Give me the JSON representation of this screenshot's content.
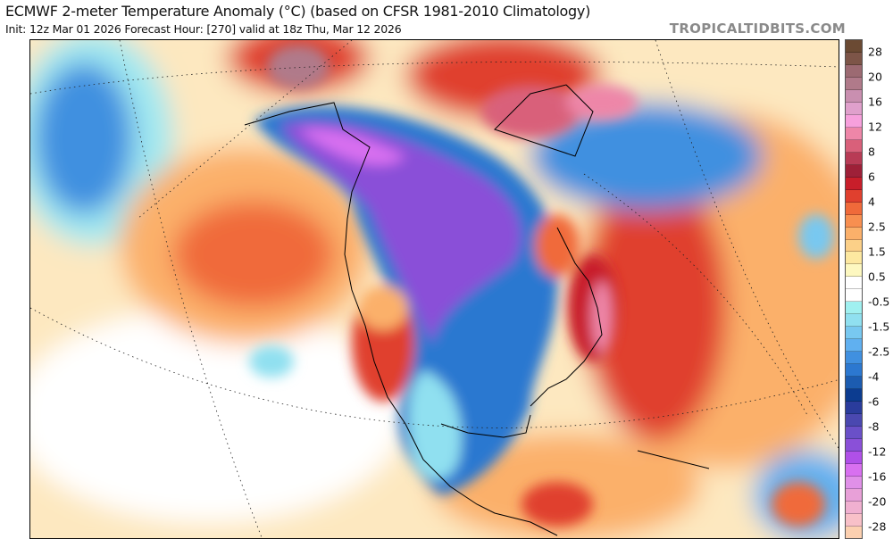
{
  "header": {
    "title": "ECMWF 2-meter Temperature Anomaly (°C) (based on CFSR 1981-2010 Climatology)",
    "subtitle": "Init: 12z Mar 01 2026   Forecast Hour: [270]   valid at 18z Thu, Mar 12 2026",
    "brand": "TROPICALTIDBITS.COM"
  },
  "colorbar": {
    "labels": [
      "28",
      "20",
      "16",
      "12",
      "8",
      "6",
      "4",
      "2.5",
      "1.5",
      "0.5",
      "-0.5",
      "-1.5",
      "-2.5",
      "-4",
      "-6",
      "-8",
      "-12",
      "-16",
      "-20",
      "-28"
    ],
    "colors": [
      "#6b4a33",
      "#7d5548",
      "#9c6a72",
      "#b07a8a",
      "#c98fb0",
      "#e0a0cc",
      "#f7a0dc",
      "#ee86a8",
      "#d9607a",
      "#b83b55",
      "#9e2038",
      "#c81e2a",
      "#e0402e",
      "#f06a3a",
      "#f88f50",
      "#fbb06a",
      "#fcd088",
      "#fde8a0",
      "#fdf8c0",
      "#ffffff",
      "#ffffff",
      "#a0f0f0",
      "#90e0f0",
      "#78c8f0",
      "#60b0f0",
      "#4090e0",
      "#2c78d0",
      "#1c5cb0",
      "#0c3c90",
      "#2a3c9c",
      "#4a48b0",
      "#6a50c8",
      "#8a50d8",
      "#b050e8",
      "#d870f0",
      "#e090e8",
      "#e8a0d8",
      "#f0b0d0",
      "#f8c0c8",
      "#fcd0b0"
    ]
  }
}
